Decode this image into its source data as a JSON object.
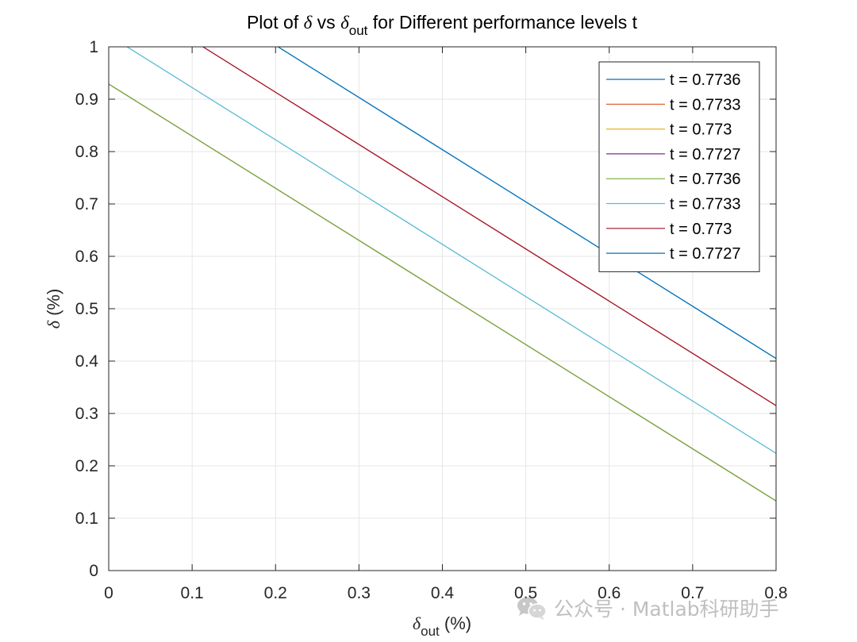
{
  "chart_data": {
    "type": "line",
    "title": {
      "prefix": "Plot of ",
      "symbol": "δ",
      "middle": " vs ",
      "symbol2": "δ",
      "subscript": "out",
      "suffix": " for Different performance levels t"
    },
    "xlabel": {
      "symbol": "δ",
      "subscript": "out",
      "suffix": " (%)"
    },
    "ylabel": {
      "symbol": "δ",
      "suffix": " (%)"
    },
    "xlim": [
      0,
      0.8
    ],
    "ylim": [
      0,
      1
    ],
    "xticks": [
      0,
      0.1,
      0.2,
      0.3,
      0.4,
      0.5,
      0.6,
      0.7,
      0.8
    ],
    "xtick_labels": [
      "0",
      "0.1",
      "0.2",
      "0.3",
      "0.4",
      "0.5",
      "0.6",
      "0.7",
      "0.8"
    ],
    "yticks": [
      0,
      0.1,
      0.2,
      0.3,
      0.4,
      0.5,
      0.6,
      0.7,
      0.8,
      0.9,
      1
    ],
    "ytick_labels": [
      "0",
      "0.1",
      "0.2",
      "0.3",
      "0.4",
      "0.5",
      "0.6",
      "0.7",
      "0.8",
      "0.9",
      "1"
    ],
    "grid": true,
    "legend_position": "top-right",
    "series": [
      {
        "name": "t = 0.7736",
        "color": "#0072BD",
        "x": [
          0.203,
          0.8
        ],
        "y": [
          1.0,
          0.405
        ]
      },
      {
        "name": "t = 0.7733",
        "color": "#D95319",
        "x": [
          0.113,
          0.8
        ],
        "y": [
          1.0,
          0.315
        ]
      },
      {
        "name": "t = 0.773",
        "color": "#EDB120",
        "x": [
          0.022,
          0.8
        ],
        "y": [
          1.0,
          0.224
        ]
      },
      {
        "name": "t = 0.7727",
        "color": "#7E2F8E",
        "x": [
          0.0,
          0.8
        ],
        "y": [
          0.929,
          0.133
        ]
      },
      {
        "name": "t = 0.7736",
        "color": "#77AC30",
        "x": [
          0.0,
          0.8
        ],
        "y": [
          0.929,
          0.133
        ]
      },
      {
        "name": "t = 0.7733",
        "color": "#4DBEEE",
        "x": [
          0.022,
          0.8
        ],
        "y": [
          1.0,
          0.224
        ]
      },
      {
        "name": "t = 0.773",
        "color": "#A2142F",
        "x": [
          0.113,
          0.8
        ],
        "y": [
          1.0,
          0.315
        ]
      },
      {
        "name": "t = 0.7727",
        "color": "#0072BD",
        "x": [
          0.203,
          0.8
        ],
        "y": [
          1.0,
          0.405
        ]
      }
    ]
  },
  "watermark": {
    "text": "公众号 · Matlab科研助手",
    "icon": "wechat-icon"
  }
}
